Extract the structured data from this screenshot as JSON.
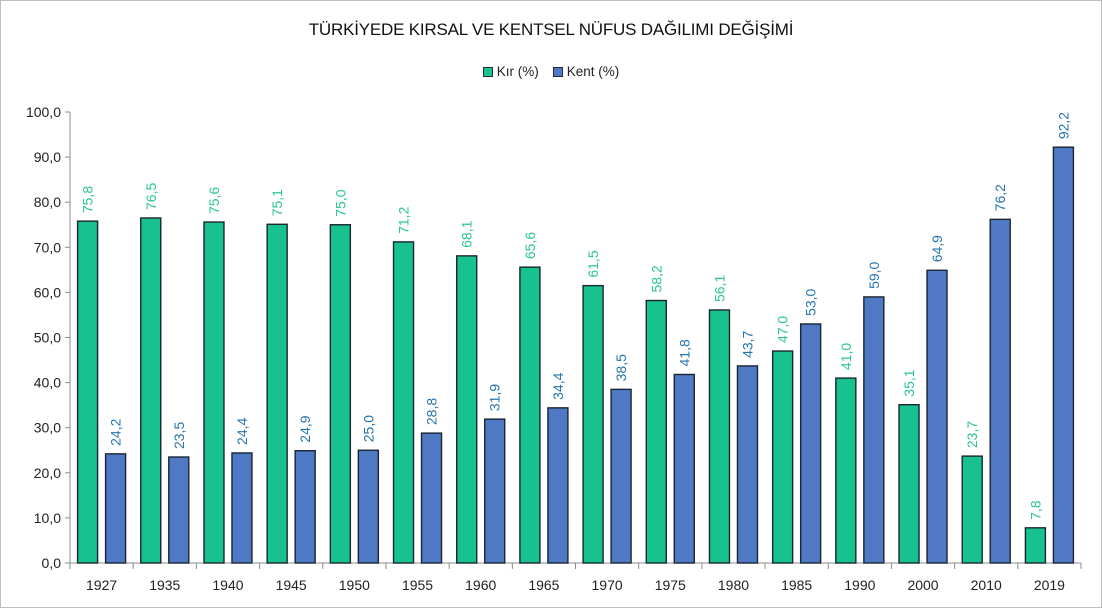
{
  "chart_data": {
    "type": "bar",
    "title": "TÜRKİYEDE KIRSAL VE KENTSEL NÜFUS DAĞILIMI DEĞİŞİMİ",
    "xlabel": "",
    "ylabel": "",
    "ylim": [
      0,
      100
    ],
    "y_tick_labels": [
      "0,0",
      "10,0",
      "20,0",
      "30,0",
      "40,0",
      "50,0",
      "60,0",
      "70,0",
      "80,0",
      "90,0",
      "100,0"
    ],
    "categories": [
      "1927",
      "1935",
      "1940",
      "1945",
      "1950",
      "1955",
      "1960",
      "1965",
      "1970",
      "1975",
      "1980",
      "1985",
      "1990",
      "2000",
      "2010",
      "2019"
    ],
    "series": [
      {
        "name": "Kır (%)",
        "color": "#17c28e",
        "label_color": "#2bc593",
        "values": [
          75.8,
          76.5,
          75.6,
          75.1,
          75.0,
          71.2,
          68.1,
          65.6,
          61.5,
          58.2,
          56.1,
          47.0,
          41.0,
          35.1,
          23.7,
          7.8
        ],
        "labels": [
          "75,8",
          "76,5",
          "75,6",
          "75,1",
          "75,0",
          "71,2",
          "68,1",
          "65,6",
          "61,5",
          "58,2",
          "56,1",
          "47,0",
          "41,0",
          "35,1",
          "23,7",
          "7,8"
        ]
      },
      {
        "name": "Kent (%)",
        "color": "#4f79c4",
        "label_color": "#2574ad",
        "values": [
          24.2,
          23.5,
          24.4,
          24.9,
          25.0,
          28.8,
          31.9,
          34.4,
          38.5,
          41.8,
          43.7,
          53.0,
          59.0,
          64.9,
          76.2,
          92.2
        ],
        "labels": [
          "24,2",
          "23,5",
          "24,4",
          "24,9",
          "25,0",
          "28,8",
          "31,9",
          "34,4",
          "38,5",
          "41,8",
          "43,7",
          "53,0",
          "59,0",
          "64,9",
          "76,2",
          "92,2"
        ]
      }
    ],
    "legend_position": "top",
    "grid": false,
    "data_labels": "vertical"
  }
}
